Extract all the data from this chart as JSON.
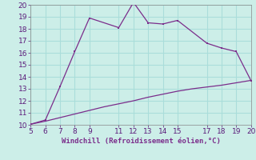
{
  "xlabel": "Windchill (Refroidissement éolien,°C)",
  "line1_x": [
    5,
    6,
    7,
    8,
    9,
    11,
    12,
    13,
    14,
    15,
    17,
    18,
    19,
    20
  ],
  "line1_y": [
    10.05,
    10.4,
    13.2,
    16.1,
    18.9,
    18.1,
    20.2,
    18.5,
    18.4,
    18.7,
    16.8,
    16.4,
    16.1,
    13.7
  ],
  "line2_x": [
    5,
    6,
    7,
    8,
    9,
    10,
    11,
    12,
    13,
    14,
    15,
    16,
    17,
    18,
    19,
    20
  ],
  "line2_y": [
    10.05,
    10.3,
    10.6,
    10.9,
    11.2,
    11.5,
    11.75,
    12.0,
    12.3,
    12.55,
    12.8,
    13.0,
    13.15,
    13.3,
    13.5,
    13.7
  ],
  "line_color": "#7b2d8b",
  "bg_color": "#cceee8",
  "grid_color": "#aaddda",
  "xlim": [
    5,
    20
  ],
  "ylim": [
    10,
    20
  ],
  "xticks": [
    5,
    6,
    7,
    8,
    9,
    11,
    12,
    13,
    14,
    15,
    17,
    18,
    19,
    20
  ],
  "yticks": [
    10,
    11,
    12,
    13,
    14,
    15,
    16,
    17,
    18,
    19,
    20
  ],
  "tick_fontsize": 6.5,
  "xlabel_fontsize": 6.5
}
